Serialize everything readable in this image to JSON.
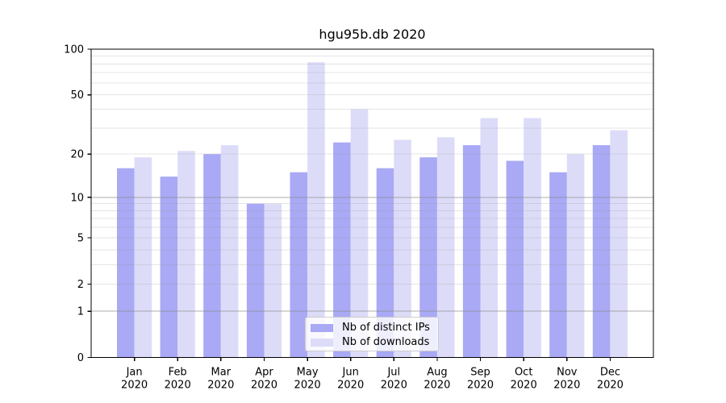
{
  "chart_data": {
    "type": "bar",
    "title": "hgu95b.db 2020",
    "year_label": "2020",
    "categories": [
      "Jan",
      "Feb",
      "Mar",
      "Apr",
      "May",
      "Jun",
      "Jul",
      "Aug",
      "Sep",
      "Oct",
      "Nov",
      "Dec"
    ],
    "series": [
      {
        "name": "Nb of distinct IPs",
        "color": "#a9a9f5",
        "values": [
          16,
          14,
          20,
          9,
          15,
          24,
          16,
          19,
          23,
          18,
          15,
          23
        ]
      },
      {
        "name": "Nb of downloads",
        "color": "#dcdcf9",
        "values": [
          19,
          21,
          23,
          9,
          82,
          40,
          25,
          26,
          35,
          35,
          20,
          29
        ]
      }
    ],
    "xlabel": "",
    "ylabel": "",
    "yscale": "log1p",
    "ylim": [
      0,
      100
    ],
    "y_ticks": [
      0,
      1,
      2,
      5,
      10,
      20,
      50,
      100
    ],
    "y_major_gridlines": [
      1,
      10,
      100
    ],
    "y_minor_gridlines": [
      2,
      3,
      4,
      5,
      6,
      7,
      8,
      9,
      20,
      30,
      40,
      50,
      60,
      70,
      80,
      90
    ],
    "grid_on": true,
    "legend_position": "bottom-center",
    "colors": {
      "major_grid": "#8c8c8c",
      "minor_grid": "#969696",
      "axis": "#000000",
      "text": "#000000",
      "background": "#ffffff"
    }
  }
}
